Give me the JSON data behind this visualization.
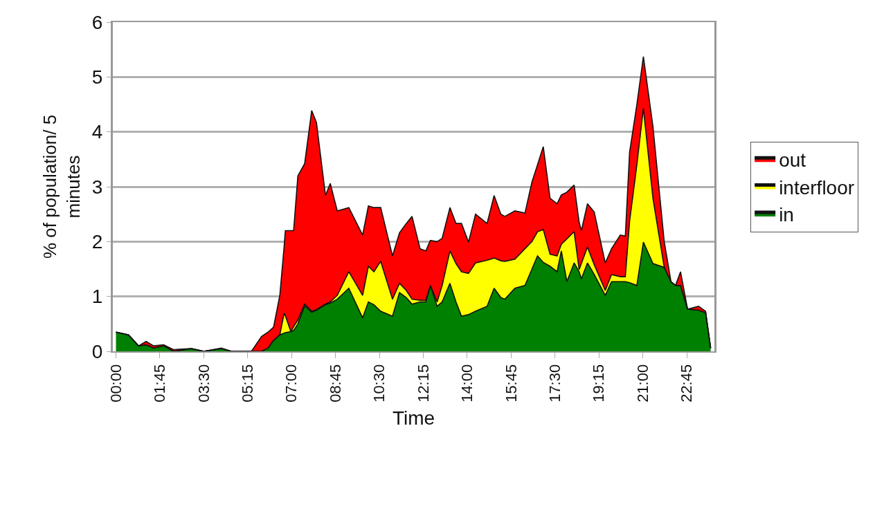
{
  "chart_data": {
    "type": "area",
    "stacked": true,
    "xlabel": "Time",
    "ylabel": "% of population/ 5 minutes",
    "x": [
      0,
      0.5,
      0.9,
      1.2,
      1.5,
      1.9,
      2.3,
      3.0,
      3.5,
      4.2,
      4.6,
      5.4,
      5.8,
      6.06,
      6.28,
      6.53,
      6.7,
      6.75,
      6.97,
      7.08,
      7.25,
      7.52,
      7.8,
      7.99,
      8.35,
      8.54,
      8.82,
      9.28,
      9.83,
      10.06,
      10.28,
      10.55,
      11.02,
      11.3,
      11.57,
      11.8,
      12.12,
      12.35,
      12.53,
      12.8,
      13.0,
      13.31,
      13.55,
      13.77,
      14.05,
      14.33,
      14.79,
      15.07,
      15.34,
      15.5,
      15.9,
      16.3,
      16.58,
      16.8,
      17.03,
      17.3,
      17.58,
      17.75,
      17.97,
      18.26,
      18.46,
      18.55,
      18.79,
      19.06,
      19.5,
      19.75,
      20.1,
      20.3,
      20.47,
      20.76,
      21.02,
      21.4,
      21.85,
      22.12,
      22.3,
      22.5,
      22.78,
      23.22,
      23.5,
      23.7
    ],
    "series": [
      {
        "name": "in",
        "color": "#008000",
        "values": [
          0.35,
          0.3,
          0.1,
          0.12,
          0.06,
          0.1,
          0,
          0.05,
          0,
          0.05,
          0,
          0,
          0,
          0.06,
          0.2,
          0.3,
          0.33,
          0.34,
          0.36,
          0.38,
          0.5,
          0.83,
          0.71,
          0.75,
          0.85,
          0.88,
          0.95,
          1.15,
          0.61,
          0.9,
          0.85,
          0.73,
          0.64,
          1.07,
          0.98,
          0.86,
          0.9,
          0.9,
          1.2,
          0.82,
          0.9,
          1.24,
          0.9,
          0.64,
          0.67,
          0.73,
          0.82,
          1.15,
          0.98,
          0.95,
          1.15,
          1.2,
          1.5,
          1.74,
          1.62,
          1.55,
          1.45,
          1.83,
          1.27,
          1.61,
          1.45,
          1.32,
          1.61,
          1.4,
          1.02,
          1.27,
          1.27,
          1.27,
          1.25,
          1.2,
          1.99,
          1.6,
          1.53,
          1.27,
          1.2,
          1.2,
          0.77,
          0.75,
          0.7,
          0.06
        ]
      },
      {
        "name": "interfloor",
        "color": "#ffff00",
        "values": [
          0,
          0,
          0,
          0,
          0,
          0,
          0,
          0,
          0,
          0,
          0,
          0,
          0,
          0,
          0,
          0,
          0.36,
          0.31,
          0,
          0.07,
          0.07,
          0.03,
          0.02,
          0.01,
          0.01,
          0.02,
          0.07,
          0.3,
          0.41,
          0.65,
          0.6,
          0.91,
          0.31,
          0.17,
          0.13,
          0.09,
          0.03,
          0.03,
          0,
          0.08,
          0.3,
          0.59,
          0.7,
          0.81,
          0.75,
          0.88,
          0.84,
          0.55,
          0.67,
          0.69,
          0.53,
          0.67,
          0.5,
          0.44,
          0.6,
          0.22,
          0.29,
          0.12,
          0.78,
          0.57,
          0.04,
          0.28,
          0.29,
          0.18,
          0.09,
          0.13,
          0.09,
          0.09,
          1.12,
          2.2,
          2.44,
          1.19,
          0,
          0,
          0,
          0,
          0,
          0,
          0,
          0
        ]
      },
      {
        "name": "out",
        "color": "#ff0000",
        "values": [
          0,
          0,
          0,
          0.06,
          0.04,
          0.02,
          0.03,
          0,
          0,
          0.01,
          0,
          0,
          0.27,
          0.29,
          0.24,
          0.72,
          1.21,
          1.55,
          1.84,
          1.75,
          2.63,
          2.56,
          3.66,
          3.41,
          1.98,
          2.16,
          1.54,
          1.17,
          1.1,
          1.1,
          1.17,
          0.98,
          0.79,
          0.92,
          1.22,
          1.51,
          0.94,
          0.9,
          0.82,
          1.1,
          0.86,
          0.79,
          0.73,
          0.88,
          0.57,
          0.89,
          0.67,
          1.14,
          0.85,
          0.82,
          0.88,
          0.65,
          1.09,
          1.22,
          1.51,
          1.02,
          0.95,
          0.9,
          0.85,
          0.85,
          0.86,
          0.6,
          0.79,
          0.96,
          0.5,
          0.47,
          0.76,
          0.74,
          1.26,
          1.1,
          0.94,
          1.31,
          0.47,
          0,
          0,
          0.25,
          0,
          0.07,
          0.03,
          0
        ]
      }
    ],
    "xlim": [
      -0.125,
      23.85
    ],
    "xticks": [
      {
        "value": 0,
        "label": "00:00"
      },
      {
        "value": 1.75,
        "label": "01:45"
      },
      {
        "value": 3.5,
        "label": "03:30"
      },
      {
        "value": 5.25,
        "label": "05:15"
      },
      {
        "value": 7,
        "label": "07:00"
      },
      {
        "value": 8.75,
        "label": "08:45"
      },
      {
        "value": 10.5,
        "label": "10:30"
      },
      {
        "value": 12.25,
        "label": "12:15"
      },
      {
        "value": 14,
        "label": "14:00"
      },
      {
        "value": 15.75,
        "label": "15:45"
      },
      {
        "value": 17.5,
        "label": "17:30"
      },
      {
        "value": 19.25,
        "label": "19:15"
      },
      {
        "value": 21,
        "label": "21:00"
      },
      {
        "value": 22.75,
        "label": "22:45"
      }
    ],
    "ylim": [
      0,
      6
    ],
    "yticks": [
      0,
      1,
      2,
      3,
      4,
      5,
      6
    ],
    "grid": "y",
    "legend": "right"
  }
}
